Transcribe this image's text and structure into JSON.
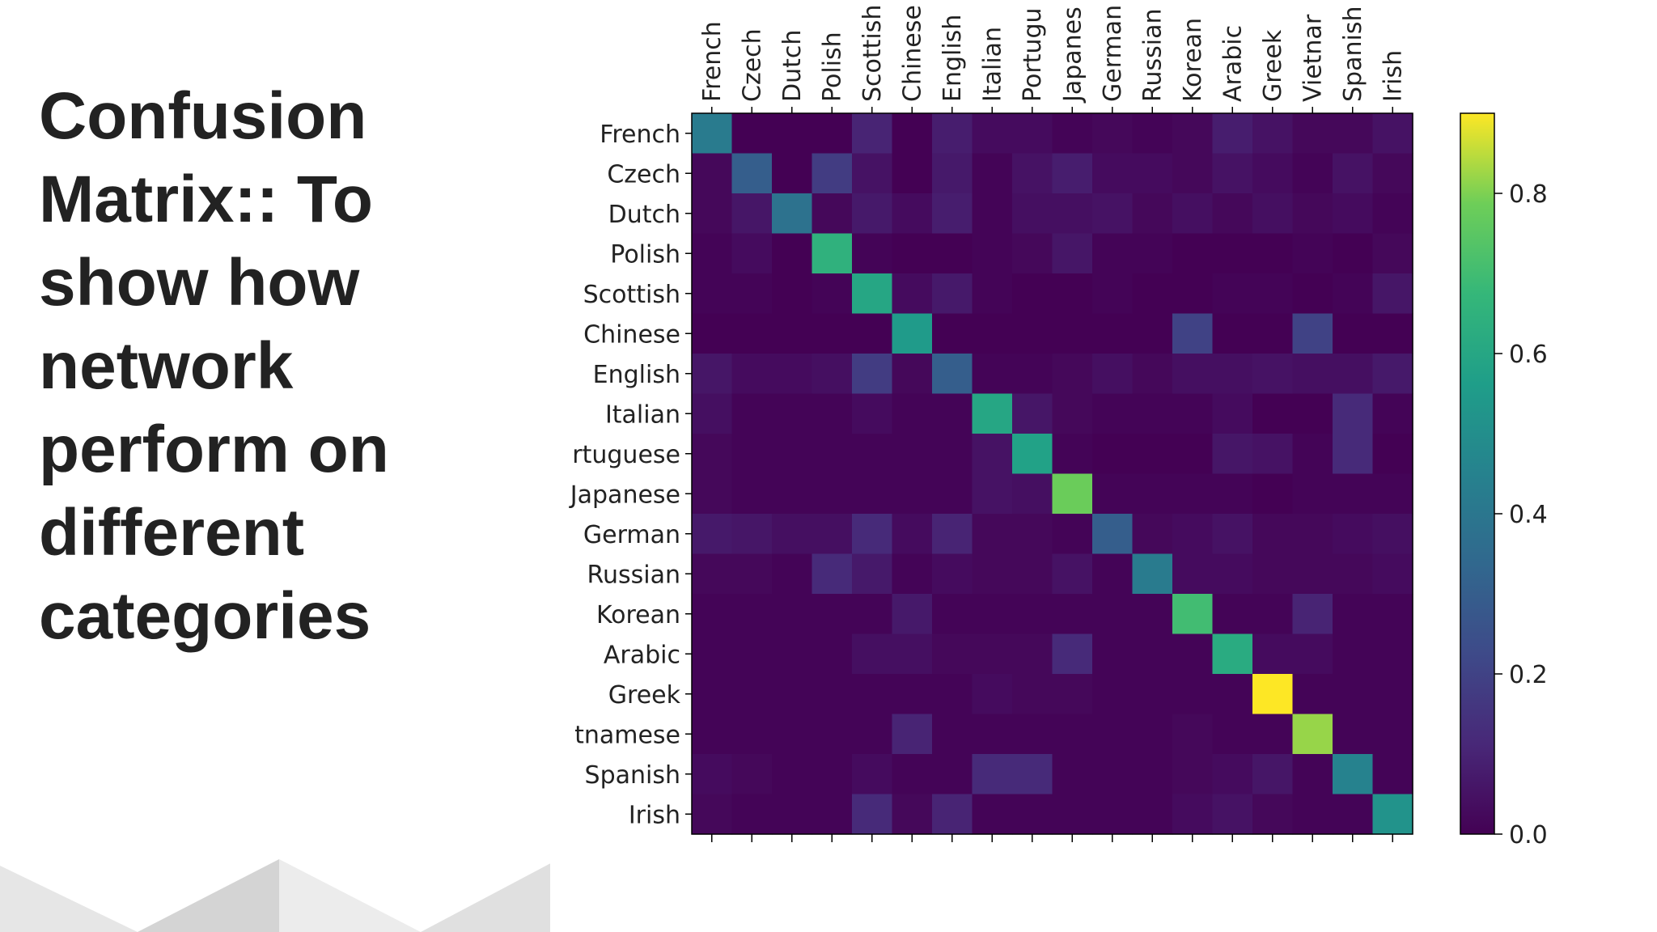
{
  "slide": {
    "title": "Confusion Matrix:: To show how network perform on different categories"
  },
  "chart_data": {
    "type": "heatmap",
    "row_labels": [
      "French",
      "Czech",
      "Dutch",
      "Polish",
      "Scottish",
      "Chinese",
      "English",
      "Italian",
      "rtuguese",
      "Japanese",
      "German",
      "Russian",
      "Korean",
      "Arabic",
      "Greek",
      "tnamese",
      "Spanish",
      "Irish"
    ],
    "col_labels": [
      "French",
      "Czech",
      "Dutch",
      "Polish",
      "Scottish",
      "Chinese",
      "English",
      "Italian",
      "Portugu",
      "Japanes",
      "German",
      "Russian",
      "Korean",
      "Arabic",
      "Greek",
      "Vietnar",
      "Spanish",
      "Irish"
    ],
    "values": [
      [
        0.42,
        0.0,
        0.0,
        0.0,
        0.1,
        0.0,
        0.08,
        0.03,
        0.03,
        0.01,
        0.02,
        0.01,
        0.02,
        0.08,
        0.05,
        0.02,
        0.02,
        0.05
      ],
      [
        0.02,
        0.3,
        0.0,
        0.18,
        0.05,
        0.0,
        0.07,
        0.01,
        0.05,
        0.08,
        0.03,
        0.03,
        0.02,
        0.05,
        0.03,
        0.01,
        0.05,
        0.02
      ],
      [
        0.02,
        0.06,
        0.38,
        0.02,
        0.07,
        0.03,
        0.08,
        0.01,
        0.04,
        0.04,
        0.05,
        0.02,
        0.04,
        0.02,
        0.04,
        0.02,
        0.03,
        0.01
      ],
      [
        0.01,
        0.03,
        0.0,
        0.65,
        0.01,
        0.0,
        0.0,
        0.01,
        0.02,
        0.06,
        0.01,
        0.01,
        0.0,
        0.0,
        0.0,
        0.01,
        0.0,
        0.02
      ],
      [
        0.01,
        0.01,
        0.0,
        0.01,
        0.6,
        0.03,
        0.07,
        0.01,
        0.0,
        0.0,
        0.01,
        0.0,
        0.0,
        0.01,
        0.01,
        0.0,
        0.01,
        0.06
      ],
      [
        0.0,
        0.0,
        0.0,
        0.0,
        0.0,
        0.55,
        0.0,
        0.0,
        0.0,
        0.0,
        0.0,
        0.0,
        0.2,
        0.0,
        0.0,
        0.2,
        0.0,
        0.0
      ],
      [
        0.06,
        0.03,
        0.03,
        0.04,
        0.18,
        0.02,
        0.3,
        0.01,
        0.01,
        0.02,
        0.04,
        0.02,
        0.04,
        0.04,
        0.05,
        0.04,
        0.04,
        0.07
      ],
      [
        0.04,
        0.01,
        0.01,
        0.01,
        0.03,
        0.01,
        0.01,
        0.6,
        0.06,
        0.02,
        0.01,
        0.01,
        0.01,
        0.03,
        0.0,
        0.0,
        0.12,
        0.01
      ],
      [
        0.02,
        0.01,
        0.01,
        0.01,
        0.01,
        0.01,
        0.01,
        0.05,
        0.58,
        0.01,
        0.0,
        0.0,
        0.0,
        0.06,
        0.05,
        0.01,
        0.12,
        0.0
      ],
      [
        0.02,
        0.01,
        0.01,
        0.01,
        0.01,
        0.01,
        0.01,
        0.05,
        0.04,
        0.78,
        0.01,
        0.01,
        0.01,
        0.01,
        0.0,
        0.01,
        0.01,
        0.01
      ],
      [
        0.07,
        0.06,
        0.04,
        0.04,
        0.12,
        0.03,
        0.1,
        0.02,
        0.02,
        0.01,
        0.3,
        0.02,
        0.03,
        0.05,
        0.02,
        0.02,
        0.03,
        0.04
      ],
      [
        0.02,
        0.02,
        0.01,
        0.12,
        0.07,
        0.01,
        0.03,
        0.02,
        0.02,
        0.05,
        0.01,
        0.42,
        0.03,
        0.03,
        0.02,
        0.02,
        0.02,
        0.03
      ],
      [
        0.01,
        0.01,
        0.01,
        0.01,
        0.01,
        0.07,
        0.01,
        0.01,
        0.01,
        0.01,
        0.01,
        0.01,
        0.7,
        0.01,
        0.01,
        0.1,
        0.01,
        0.01
      ],
      [
        0.01,
        0.01,
        0.01,
        0.01,
        0.04,
        0.04,
        0.02,
        0.02,
        0.02,
        0.12,
        0.01,
        0.01,
        0.01,
        0.62,
        0.03,
        0.03,
        0.01,
        0.01
      ],
      [
        0.01,
        0.01,
        0.01,
        0.01,
        0.01,
        0.01,
        0.01,
        0.03,
        0.02,
        0.02,
        0.01,
        0.01,
        0.01,
        0.01,
        0.9,
        0.01,
        0.01,
        0.01
      ],
      [
        0.01,
        0.01,
        0.01,
        0.01,
        0.01,
        0.1,
        0.01,
        0.01,
        0.01,
        0.01,
        0.01,
        0.01,
        0.02,
        0.01,
        0.01,
        0.82,
        0.01,
        0.01
      ],
      [
        0.03,
        0.02,
        0.01,
        0.01,
        0.03,
        0.01,
        0.01,
        0.12,
        0.12,
        0.01,
        0.01,
        0.01,
        0.02,
        0.03,
        0.06,
        0.01,
        0.45,
        0.01
      ],
      [
        0.02,
        0.01,
        0.01,
        0.01,
        0.12,
        0.02,
        0.1,
        0.01,
        0.01,
        0.01,
        0.01,
        0.01,
        0.03,
        0.05,
        0.02,
        0.01,
        0.01,
        0.52
      ]
    ],
    "colorbar": {
      "colormap": "viridis",
      "range": [
        0.0,
        0.9
      ],
      "ticks": [
        0.0,
        0.2,
        0.4,
        0.6,
        0.8
      ],
      "tick_labels": [
        "0.0",
        "0.2",
        "0.4",
        "0.6",
        "0.8"
      ]
    },
    "grid": false,
    "xaxis_position": "top"
  }
}
